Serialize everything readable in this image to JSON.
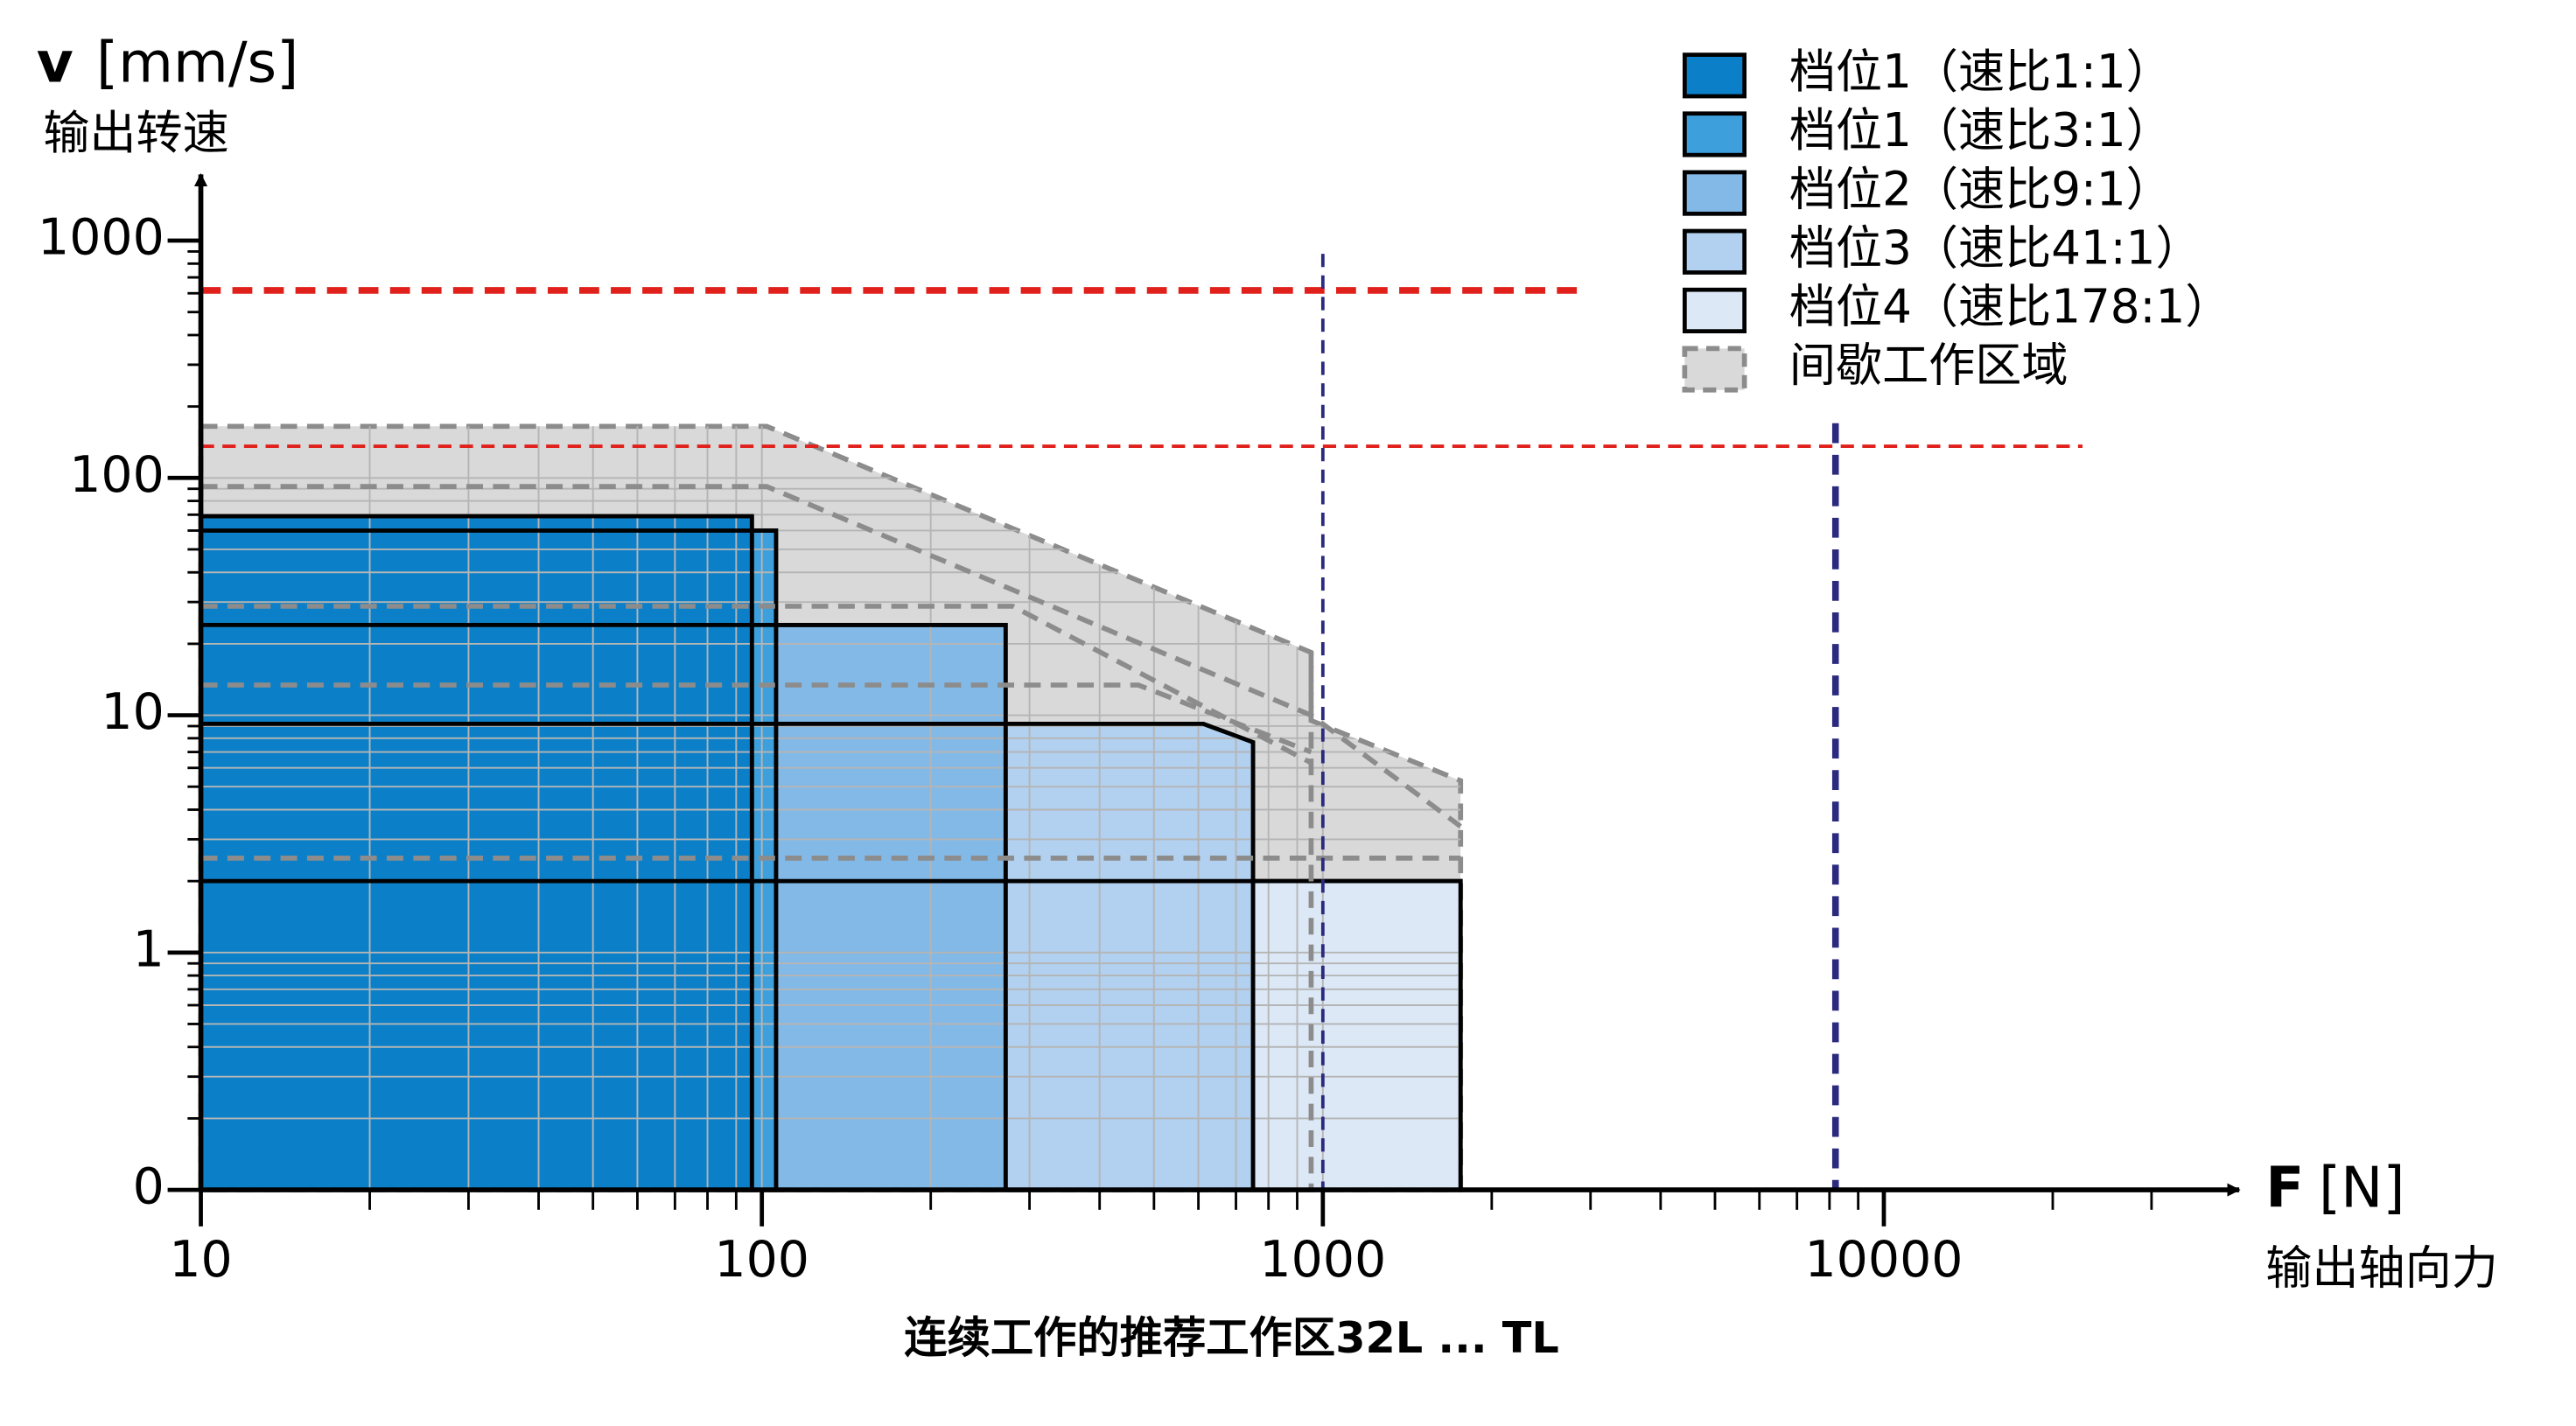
{
  "chart_data": {
    "type": "area-regions",
    "y_label": "v",
    "y_unit": "[mm/s]",
    "y_sublabel": "输出转速",
    "x_label": "F",
    "x_unit": "[N]",
    "x_sublabel": "输出轴向力",
    "caption": "连续工作的推荐工作区32L ... TL",
    "x_log": true,
    "y_log": true,
    "minor_ticks": true,
    "grid": true,
    "xlim": [
      10,
      43000
    ],
    "ylim": [
      0.1,
      1900
    ],
    "xticks": [
      10,
      100,
      1000,
      10000
    ],
    "yticks": [
      1,
      10,
      100,
      1000
    ],
    "y_origin_label": "0",
    "series": [
      {
        "name": "间歇工作区域",
        "color": "#d9d9d9",
        "dashed": true,
        "x": [
          10,
          102,
          953,
          953,
          1760,
          1760,
          10
        ],
        "y": [
          165,
          165,
          18.4,
          9.5,
          5.3,
          0.1,
          0.1
        ]
      },
      {
        "name": "档位4（速比178:1）",
        "color": "#dce8f6",
        "x": [
          10,
          1760,
          1760,
          10
        ],
        "y": [
          2.0,
          2.0,
          0.1,
          0.1
        ]
      },
      {
        "name": "档位3（速比41:1）",
        "color": "#b2d0ef",
        "x": [
          10,
          612,
          751,
          751,
          10
        ],
        "y": [
          9.2,
          9.2,
          7.7,
          0.1,
          0.1
        ]
      },
      {
        "name": "档位2（速比9:1）",
        "color": "#83b9e7",
        "x": [
          10,
          272,
          272,
          10
        ],
        "y": [
          24,
          24,
          0.1,
          0.1
        ]
      },
      {
        "name": "档位1（速比3:1）",
        "color": "#3d9fdc",
        "x": [
          10,
          106,
          106,
          10
        ],
        "y": [
          60,
          60,
          0.1,
          0.1
        ]
      },
      {
        "name": "档位1（速比1:1）",
        "color": "#0b80c8",
        "x": [
          10,
          96,
          96,
          10
        ],
        "y": [
          69,
          69,
          0.1,
          0.1
        ]
      }
    ],
    "boundaries": [
      {
        "x": [
          10,
          102,
          953,
          1760
        ],
        "y": [
          92,
          92,
          10,
          3.4
        ]
      },
      {
        "x": [
          10,
          280,
          953
        ],
        "y": [
          28.8,
          28.8,
          6.3
        ]
      },
      {
        "x": [
          10,
          469,
          953
        ],
        "y": [
          13.4,
          13.4,
          7.0
        ]
      },
      {
        "x": [
          10,
          1760
        ],
        "y": [
          2.5,
          2.5
        ]
      },
      {
        "x": [
          953,
          953
        ],
        "y": [
          18.4,
          0.1
        ]
      }
    ],
    "reference_lines": [
      {
        "color": "#e0201b",
        "style": "thick",
        "x": [
          10,
          2930
        ],
        "y": [
          617,
          617
        ]
      },
      {
        "color": "#e0201b",
        "style": "thin",
        "x": [
          10,
          22600
        ],
        "y": [
          136,
          136
        ]
      },
      {
        "color": "#2b2a7f",
        "style": "thin",
        "x": [
          1000,
          1000
        ],
        "y": [
          880,
          0.1
        ]
      },
      {
        "color": "#2b2a7f",
        "style": "thick",
        "x": [
          8200,
          8200
        ],
        "y": [
          170,
          0.1
        ]
      }
    ]
  }
}
